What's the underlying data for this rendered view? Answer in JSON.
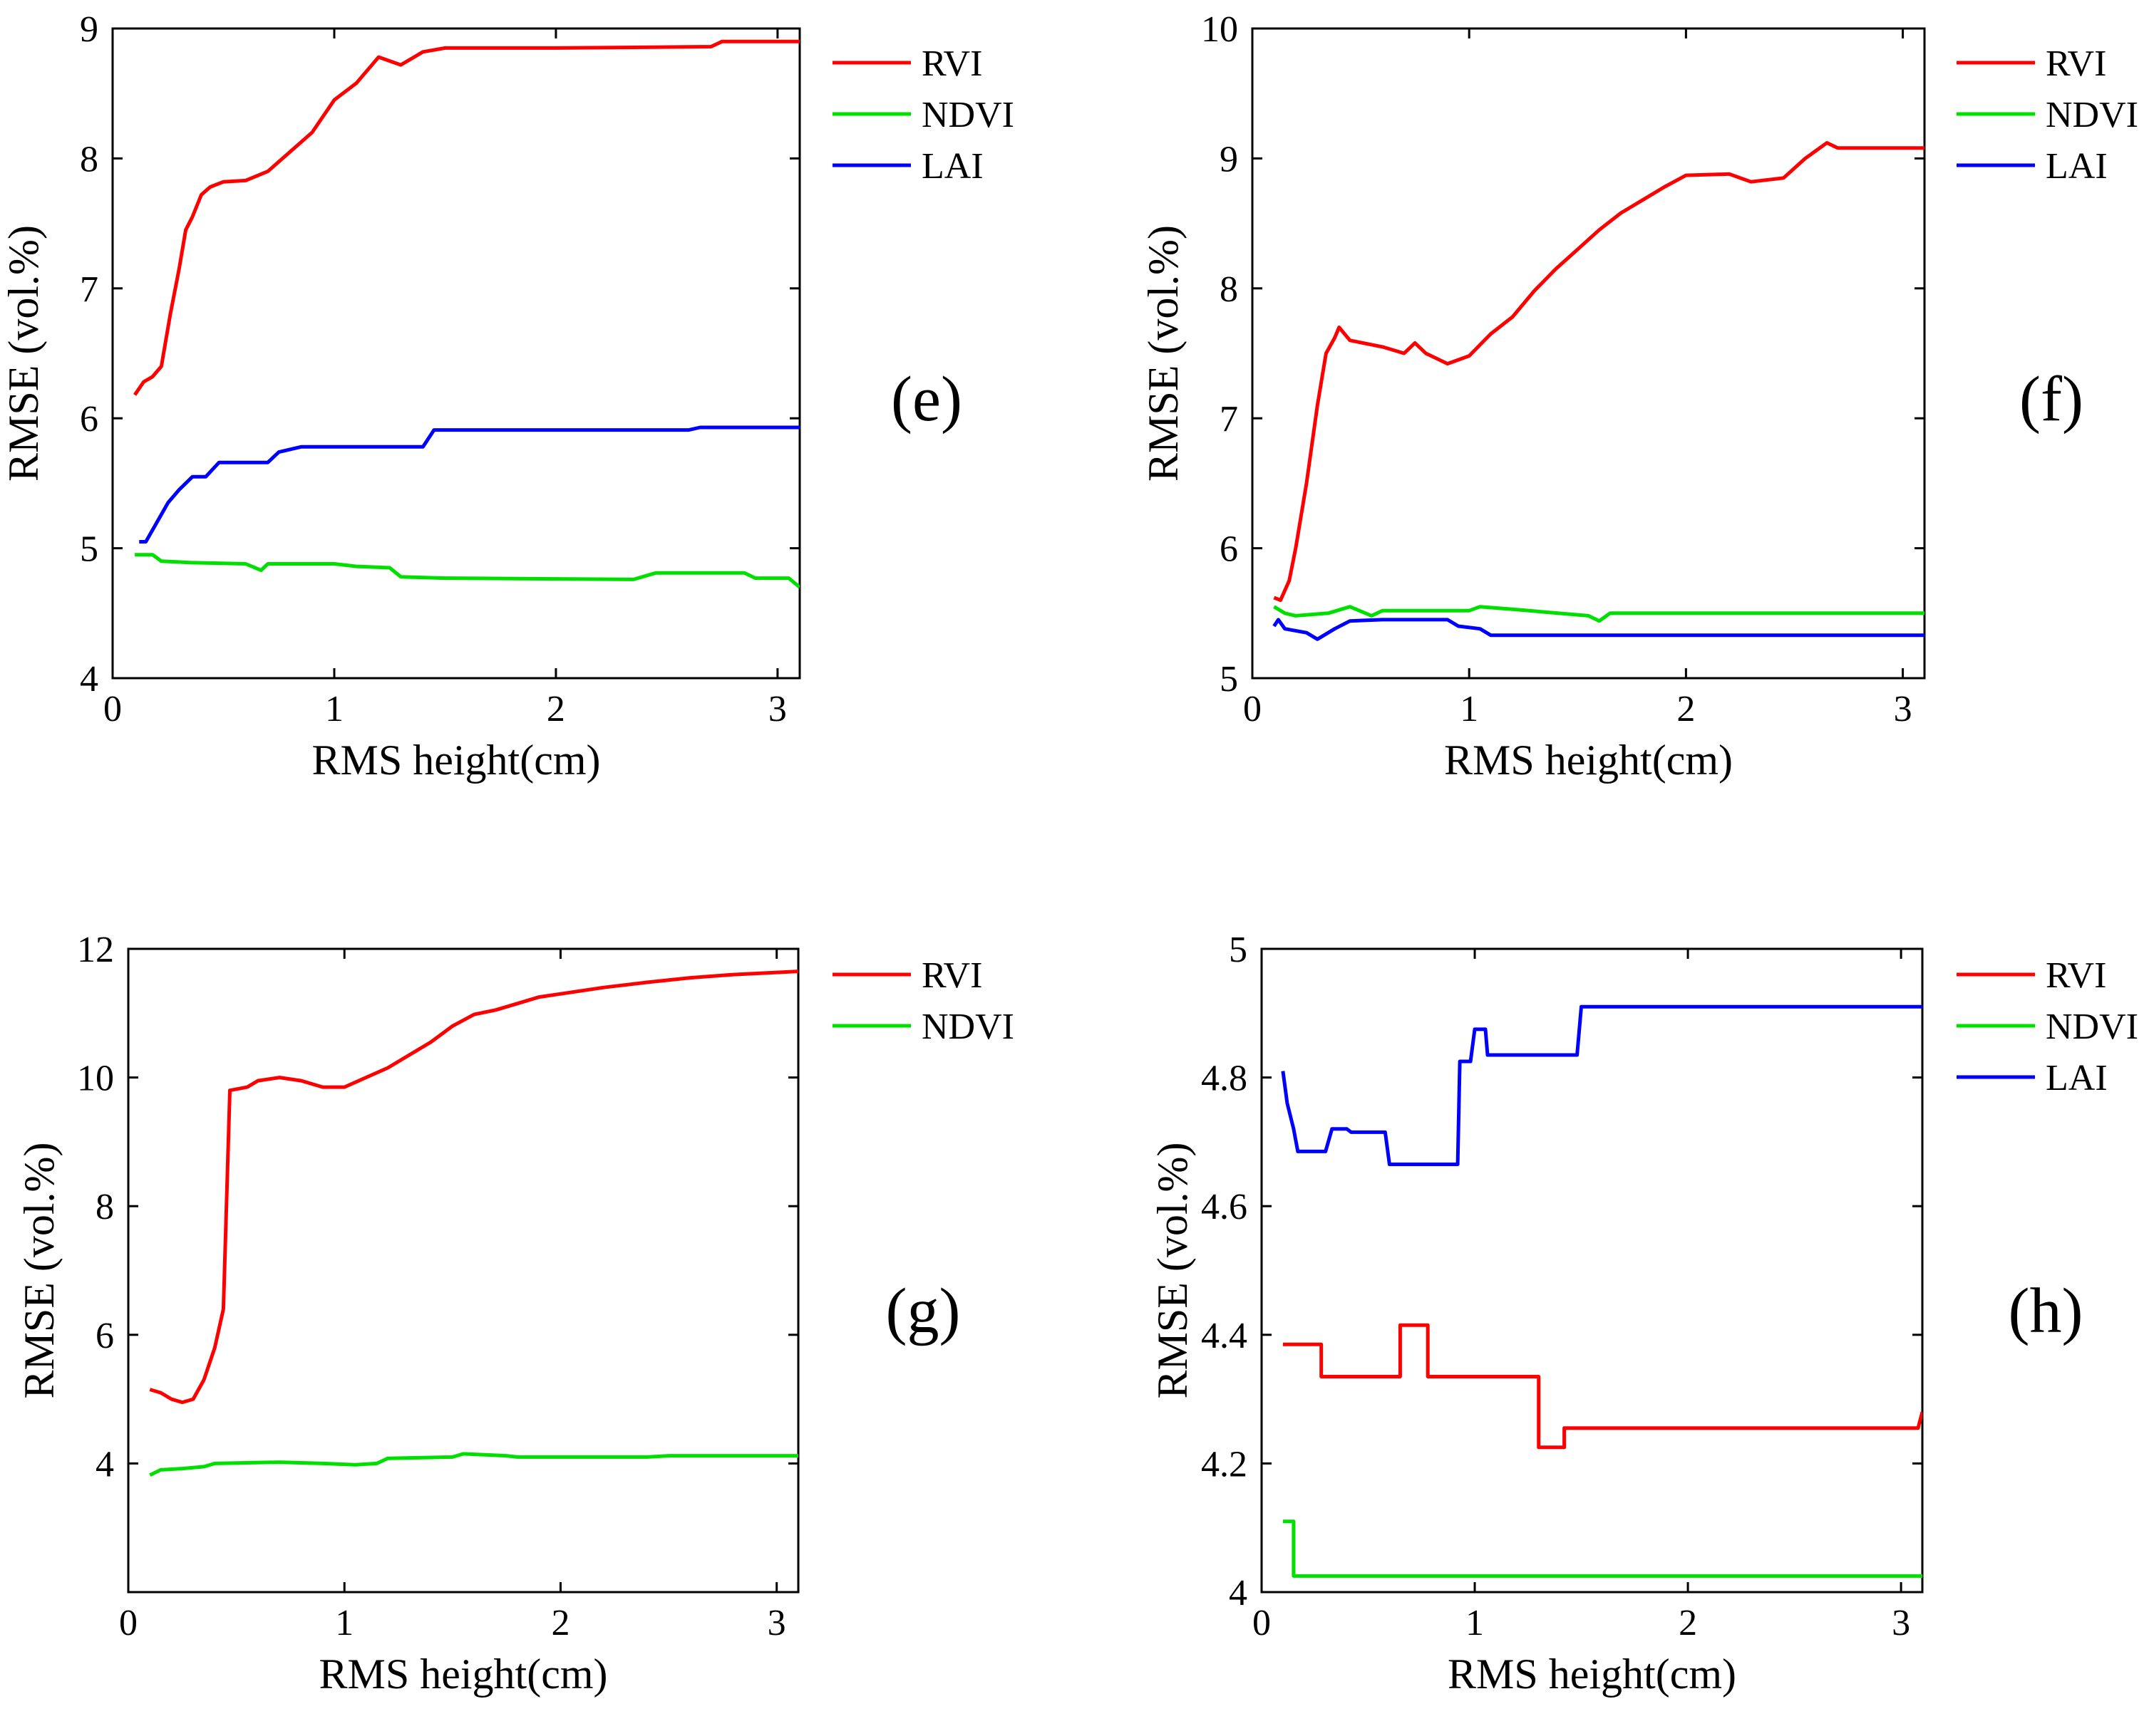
{
  "chart_data": [
    {
      "type": "line",
      "panel_label": "(e)",
      "xlabel": "RMS height(cm)",
      "ylabel": "RMSE (vol.%)",
      "xlim": [
        0,
        3.1
      ],
      "ylim": [
        4,
        9
      ],
      "xticks": [
        "0",
        "1",
        "2",
        "3"
      ],
      "yticks": [
        "4",
        "5",
        "6",
        "7",
        "8",
        "9"
      ],
      "legend_position": "top-right-outside",
      "series": [
        {
          "name": "RVI",
          "color": "#ff0000",
          "points": [
            [
              0.1,
              6.18
            ],
            [
              0.14,
              6.28
            ],
            [
              0.18,
              6.32
            ],
            [
              0.22,
              6.4
            ],
            [
              0.26,
              6.8
            ],
            [
              0.3,
              7.15
            ],
            [
              0.33,
              7.45
            ],
            [
              0.36,
              7.55
            ],
            [
              0.4,
              7.72
            ],
            [
              0.44,
              7.78
            ],
            [
              0.5,
              7.82
            ],
            [
              0.6,
              7.83
            ],
            [
              0.7,
              7.9
            ],
            [
              0.8,
              8.05
            ],
            [
              0.9,
              8.2
            ],
            [
              1.0,
              8.45
            ],
            [
              1.1,
              8.58
            ],
            [
              1.2,
              8.78
            ],
            [
              1.3,
              8.72
            ],
            [
              1.4,
              8.82
            ],
            [
              1.5,
              8.85
            ],
            [
              2.0,
              8.85
            ],
            [
              2.7,
              8.86
            ],
            [
              2.75,
              8.9
            ],
            [
              3.1,
              8.9
            ]
          ]
        },
        {
          "name": "NDVI",
          "color": "#00e000",
          "points": [
            [
              0.1,
              4.95
            ],
            [
              0.18,
              4.95
            ],
            [
              0.22,
              4.9
            ],
            [
              0.35,
              4.89
            ],
            [
              0.6,
              4.88
            ],
            [
              0.67,
              4.83
            ],
            [
              0.7,
              4.88
            ],
            [
              1.0,
              4.88
            ],
            [
              1.1,
              4.86
            ],
            [
              1.25,
              4.85
            ],
            [
              1.3,
              4.78
            ],
            [
              1.5,
              4.77
            ],
            [
              2.35,
              4.76
            ],
            [
              2.45,
              4.81
            ],
            [
              2.85,
              4.81
            ],
            [
              2.9,
              4.77
            ],
            [
              3.05,
              4.77
            ],
            [
              3.1,
              4.7
            ]
          ]
        },
        {
          "name": "LAI",
          "color": "#0000ff",
          "points": [
            [
              0.12,
              5.05
            ],
            [
              0.15,
              5.05
            ],
            [
              0.2,
              5.2
            ],
            [
              0.25,
              5.35
            ],
            [
              0.3,
              5.45
            ],
            [
              0.36,
              5.55
            ],
            [
              0.42,
              5.55
            ],
            [
              0.48,
              5.66
            ],
            [
              0.7,
              5.66
            ],
            [
              0.75,
              5.74
            ],
            [
              0.85,
              5.78
            ],
            [
              0.95,
              5.78
            ],
            [
              1.2,
              5.78
            ],
            [
              1.4,
              5.78
            ],
            [
              1.45,
              5.91
            ],
            [
              2.6,
              5.91
            ],
            [
              2.65,
              5.93
            ],
            [
              3.1,
              5.93
            ]
          ]
        }
      ]
    },
    {
      "type": "line",
      "panel_label": "(f)",
      "xlabel": "RMS height(cm)",
      "ylabel": "RMSE (vol.%)",
      "xlim": [
        0,
        3.1
      ],
      "ylim": [
        5,
        10
      ],
      "xticks": [
        "0",
        "1",
        "2",
        "3"
      ],
      "yticks": [
        "5",
        "6",
        "7",
        "8",
        "9",
        "10"
      ],
      "legend_position": "top-right-outside",
      "series": [
        {
          "name": "RVI",
          "color": "#ff0000",
          "points": [
            [
              0.1,
              5.62
            ],
            [
              0.13,
              5.6
            ],
            [
              0.17,
              5.75
            ],
            [
              0.2,
              6.0
            ],
            [
              0.25,
              6.5
            ],
            [
              0.3,
              7.1
            ],
            [
              0.34,
              7.5
            ],
            [
              0.38,
              7.62
            ],
            [
              0.4,
              7.7
            ],
            [
              0.45,
              7.6
            ],
            [
              0.6,
              7.55
            ],
            [
              0.7,
              7.5
            ],
            [
              0.75,
              7.58
            ],
            [
              0.8,
              7.5
            ],
            [
              0.9,
              7.42
            ],
            [
              1.0,
              7.48
            ],
            [
              1.1,
              7.65
            ],
            [
              1.2,
              7.78
            ],
            [
              1.3,
              7.98
            ],
            [
              1.4,
              8.15
            ],
            [
              1.5,
              8.3
            ],
            [
              1.6,
              8.45
            ],
            [
              1.7,
              8.58
            ],
            [
              1.8,
              8.68
            ],
            [
              1.9,
              8.78
            ],
            [
              2.0,
              8.87
            ],
            [
              2.2,
              8.88
            ],
            [
              2.3,
              8.82
            ],
            [
              2.45,
              8.85
            ],
            [
              2.55,
              9.0
            ],
            [
              2.65,
              9.12
            ],
            [
              2.7,
              9.08
            ],
            [
              3.1,
              9.08
            ]
          ]
        },
        {
          "name": "NDVI",
          "color": "#00e000",
          "points": [
            [
              0.1,
              5.55
            ],
            [
              0.15,
              5.5
            ],
            [
              0.2,
              5.48
            ],
            [
              0.35,
              5.5
            ],
            [
              0.45,
              5.55
            ],
            [
              0.55,
              5.48
            ],
            [
              0.6,
              5.52
            ],
            [
              1.0,
              5.52
            ],
            [
              1.05,
              5.55
            ],
            [
              1.2,
              5.53
            ],
            [
              1.55,
              5.48
            ],
            [
              1.6,
              5.44
            ],
            [
              1.65,
              5.5
            ],
            [
              3.1,
              5.5
            ]
          ]
        },
        {
          "name": "LAI",
          "color": "#0000ff",
          "points": [
            [
              0.1,
              5.4
            ],
            [
              0.12,
              5.45
            ],
            [
              0.15,
              5.38
            ],
            [
              0.25,
              5.35
            ],
            [
              0.3,
              5.3
            ],
            [
              0.38,
              5.38
            ],
            [
              0.45,
              5.44
            ],
            [
              0.6,
              5.45
            ],
            [
              0.9,
              5.45
            ],
            [
              0.95,
              5.4
            ],
            [
              1.05,
              5.38
            ],
            [
              1.1,
              5.33
            ],
            [
              3.1,
              5.33
            ]
          ]
        }
      ]
    },
    {
      "type": "line",
      "panel_label": "(g)",
      "xlabel": "RMS height(cm)",
      "ylabel": "RMSE (vol.%)",
      "xlim": [
        0,
        3.1
      ],
      "ylim": [
        2,
        12
      ],
      "xticks": [
        "0",
        "1",
        "2",
        "3"
      ],
      "yticks": [
        "4",
        "6",
        "8",
        "10",
        "12"
      ],
      "legend_position": "top-right-outside",
      "series": [
        {
          "name": "RVI",
          "color": "#ff0000",
          "points": [
            [
              0.1,
              5.15
            ],
            [
              0.15,
              5.1
            ],
            [
              0.2,
              5.0
            ],
            [
              0.25,
              4.95
            ],
            [
              0.3,
              5.0
            ],
            [
              0.35,
              5.3
            ],
            [
              0.4,
              5.8
            ],
            [
              0.44,
              6.4
            ],
            [
              0.47,
              9.8
            ],
            [
              0.55,
              9.85
            ],
            [
              0.6,
              9.95
            ],
            [
              0.7,
              10.0
            ],
            [
              0.8,
              9.95
            ],
            [
              0.9,
              9.85
            ],
            [
              1.0,
              9.85
            ],
            [
              1.1,
              10.0
            ],
            [
              1.2,
              10.15
            ],
            [
              1.3,
              10.35
            ],
            [
              1.4,
              10.55
            ],
            [
              1.5,
              10.8
            ],
            [
              1.6,
              10.98
            ],
            [
              1.7,
              11.05
            ],
            [
              1.8,
              11.15
            ],
            [
              1.9,
              11.25
            ],
            [
              2.0,
              11.3
            ],
            [
              2.2,
              11.4
            ],
            [
              2.4,
              11.48
            ],
            [
              2.6,
              11.55
            ],
            [
              2.8,
              11.6
            ],
            [
              3.1,
              11.65
            ]
          ]
        },
        {
          "name": "NDVI",
          "color": "#00e000",
          "points": [
            [
              0.1,
              3.82
            ],
            [
              0.15,
              3.9
            ],
            [
              0.25,
              3.92
            ],
            [
              0.35,
              3.95
            ],
            [
              0.4,
              4.0
            ],
            [
              0.7,
              4.02
            ],
            [
              0.9,
              4.0
            ],
            [
              1.05,
              3.98
            ],
            [
              1.15,
              4.0
            ],
            [
              1.2,
              4.08
            ],
            [
              1.5,
              4.1
            ],
            [
              1.55,
              4.15
            ],
            [
              1.75,
              4.12
            ],
            [
              1.8,
              4.1
            ],
            [
              2.4,
              4.1
            ],
            [
              2.5,
              4.12
            ],
            [
              3.1,
              4.12
            ]
          ]
        }
      ]
    },
    {
      "type": "line",
      "panel_label": "(h)",
      "xlabel": "RMS height(cm)",
      "ylabel": "RMSE (vol.%)",
      "xlim": [
        0,
        3.1
      ],
      "ylim": [
        4,
        5
      ],
      "xticks": [
        "0",
        "1",
        "2",
        "3"
      ],
      "yticks": [
        "4",
        "4.2",
        "4.4",
        "4.6",
        "4.8",
        "5"
      ],
      "legend_position": "top-right-outside",
      "series": [
        {
          "name": "RVI",
          "color": "#ff0000",
          "points": [
            [
              0.1,
              4.385
            ],
            [
              0.28,
              4.385
            ],
            [
              0.28,
              4.335
            ],
            [
              0.65,
              4.335
            ],
            [
              0.65,
              4.415
            ],
            [
              0.78,
              4.415
            ],
            [
              0.78,
              4.335
            ],
            [
              1.3,
              4.335
            ],
            [
              1.3,
              4.225
            ],
            [
              1.42,
              4.225
            ],
            [
              1.42,
              4.255
            ],
            [
              3.08,
              4.255
            ],
            [
              3.1,
              4.28
            ]
          ]
        },
        {
          "name": "NDVI",
          "color": "#00e000",
          "points": [
            [
              0.1,
              4.11
            ],
            [
              0.15,
              4.11
            ],
            [
              0.15,
              4.025
            ],
            [
              3.1,
              4.025
            ]
          ]
        },
        {
          "name": "LAI",
          "color": "#0000ff",
          "points": [
            [
              0.1,
              4.81
            ],
            [
              0.12,
              4.76
            ],
            [
              0.15,
              4.72
            ],
            [
              0.17,
              4.685
            ],
            [
              0.3,
              4.685
            ],
            [
              0.33,
              4.72
            ],
            [
              0.4,
              4.72
            ],
            [
              0.42,
              4.715
            ],
            [
              0.58,
              4.715
            ],
            [
              0.6,
              4.665
            ],
            [
              0.92,
              4.665
            ],
            [
              0.93,
              4.825
            ],
            [
              0.98,
              4.825
            ],
            [
              1.0,
              4.875
            ],
            [
              1.05,
              4.875
            ],
            [
              1.06,
              4.835
            ],
            [
              1.48,
              4.835
            ],
            [
              1.5,
              4.91
            ],
            [
              3.1,
              4.91
            ]
          ]
        }
      ]
    }
  ]
}
